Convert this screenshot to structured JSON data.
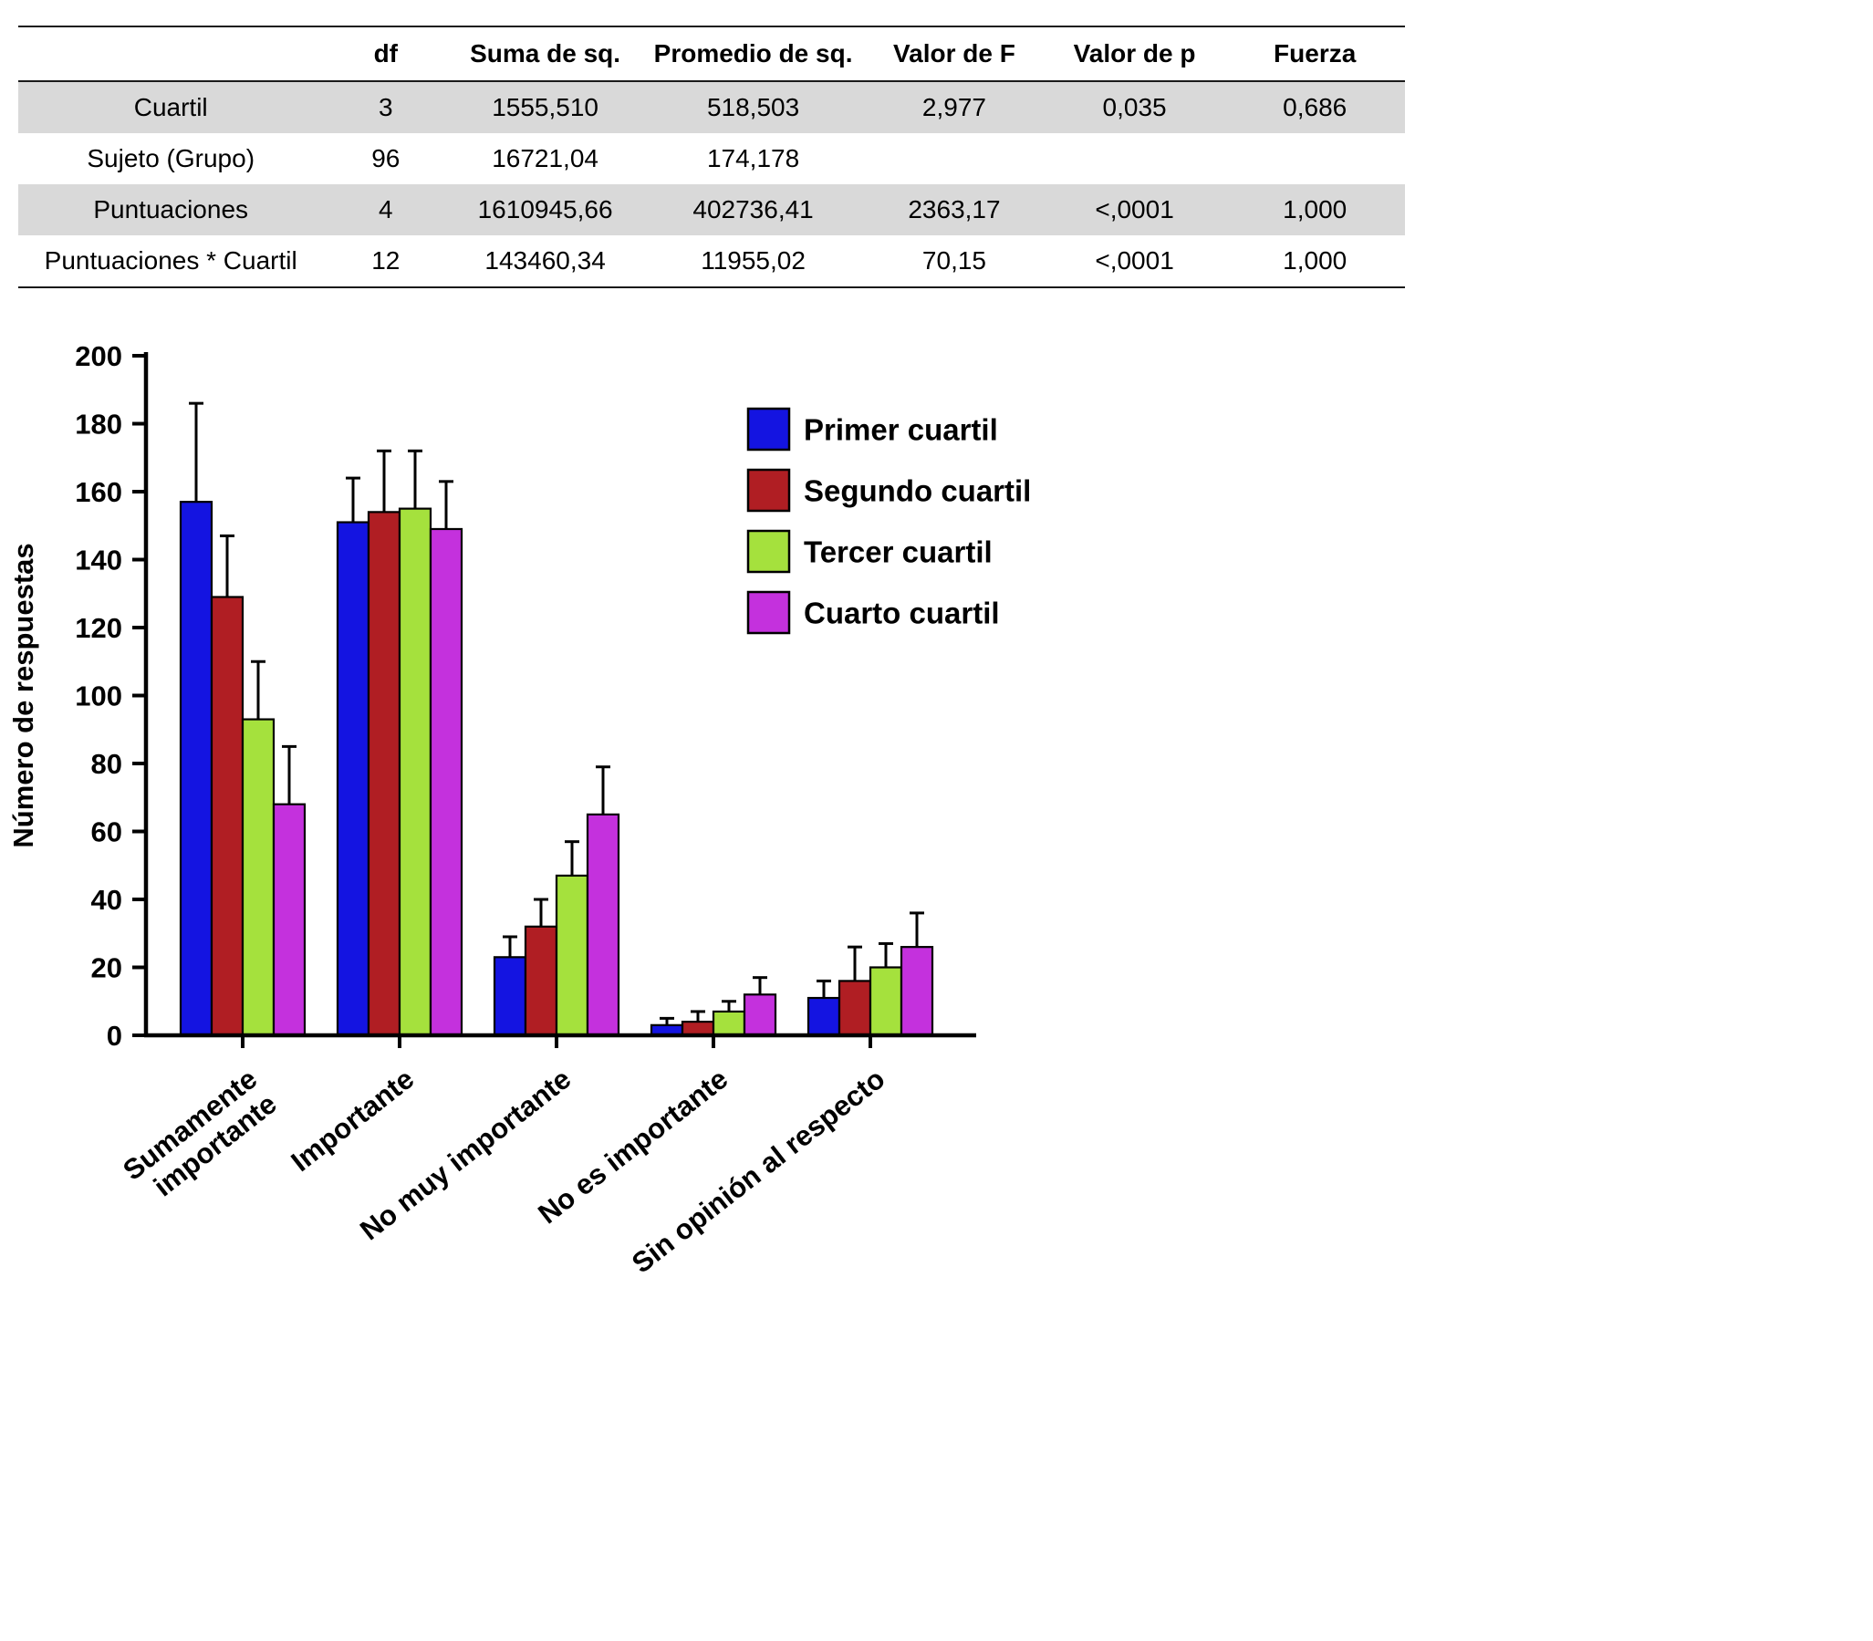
{
  "table": {
    "headers": [
      "",
      "df",
      "Suma de sq.",
      "Promedio de sq.",
      "Valor de F",
      "Valor de p",
      "Fuerza"
    ],
    "rows": [
      {
        "label": "Cuartil",
        "shaded": true,
        "values": [
          "3",
          "1555,510",
          "518,503",
          "2,977",
          "0,035",
          "0,686"
        ]
      },
      {
        "label": "Sujeto (Grupo)",
        "shaded": false,
        "values": [
          "96",
          "16721,04",
          "174,178",
          "",
          "",
          ""
        ]
      },
      {
        "label": "Puntuaciones",
        "shaded": true,
        "values": [
          "4",
          "1610945,66",
          "402736,41",
          "2363,17",
          "<,0001",
          "1,000"
        ]
      },
      {
        "label": "Puntuaciones * Cuartil",
        "shaded": false,
        "values": [
          "12",
          "143460,34",
          "11955,02",
          "70,15",
          "<,0001",
          "1,000"
        ]
      }
    ]
  },
  "chart_data": {
    "type": "bar",
    "categories": [
      "Sumamente\nimportante",
      "Importante",
      "No muy importante",
      "No es importante",
      "Sin opinión al respecto"
    ],
    "series": [
      {
        "name": "Primer cuartil",
        "color": "#1414e1",
        "values": [
          157,
          151,
          23,
          3,
          11
        ],
        "errors": [
          29,
          13,
          6,
          2,
          5
        ]
      },
      {
        "name": "Segundo cuartil",
        "color": "#b01e23",
        "values": [
          129,
          154,
          32,
          4,
          16
        ],
        "errors": [
          18,
          18,
          8,
          3,
          10
        ]
      },
      {
        "name": "Tercer cuartil",
        "color": "#a5e13d",
        "values": [
          93,
          155,
          47,
          7,
          20
        ],
        "errors": [
          17,
          17,
          10,
          3,
          7
        ]
      },
      {
        "name": "Cuarto cuartil",
        "color": "#c431dd",
        "values": [
          68,
          149,
          65,
          12,
          26
        ],
        "errors": [
          17,
          14,
          14,
          5,
          10
        ]
      }
    ],
    "ylabel": "Número de respuestas",
    "xlabel": "",
    "ylim": [
      0,
      200
    ],
    "ytick_step": 20,
    "grid": false,
    "legend_position": "upper-right-inside",
    "error_bars": "upper",
    "bar_edge_color": "#000000",
    "axis_color": "#000000"
  }
}
